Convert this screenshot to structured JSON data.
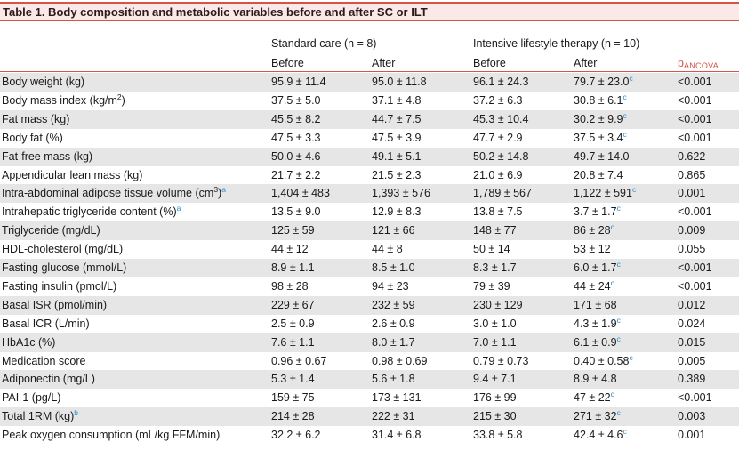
{
  "header": {
    "title": "Table 1. Body composition and metabolic variables before and after SC or ILT"
  },
  "table": {
    "groups": [
      "Standard care (n = 8)",
      "Intensive lifestyle therapy (n = 10)"
    ],
    "subheads": [
      "Before",
      "After",
      "Before",
      "After"
    ],
    "p_header": {
      "text": "p",
      "sub": "ANCOVA"
    },
    "rows": [
      {
        "label": {
          "text": "Body weight (kg)"
        },
        "cells": [
          "95.9 ± 11.4",
          "95.0 ± 11.8",
          "96.1 ± 24.3",
          {
            "text": "79.7 ± 23.0",
            "note": "c"
          },
          "<0.001"
        ]
      },
      {
        "label": {
          "text": "Body mass index (kg/m",
          "sup": "2",
          "tail": ")"
        },
        "cells": [
          "37.5 ± 5.0",
          "37.1 ± 4.8",
          "37.2 ± 6.3",
          {
            "text": "30.8 ± 6.1",
            "note": "c"
          },
          "<0.001"
        ]
      },
      {
        "label": {
          "text": "Fat mass (kg)"
        },
        "cells": [
          "45.5 ± 8.2",
          "44.7 ± 7.5",
          "45.3 ± 10.4",
          {
            "text": "30.2 ± 9.9",
            "note": "c"
          },
          "<0.001"
        ]
      },
      {
        "label": {
          "text": "Body fat (%)"
        },
        "cells": [
          "47.5 ± 3.3",
          "47.5 ± 3.9",
          "47.7 ± 2.9",
          {
            "text": "37.5 ± 3.4",
            "note": "c"
          },
          "<0.001"
        ]
      },
      {
        "label": {
          "text": "Fat-free mass (kg)"
        },
        "cells": [
          "50.0 ± 4.6",
          "49.1 ± 5.1",
          "50.2 ± 14.8",
          "49.7 ± 14.0",
          "0.622"
        ]
      },
      {
        "label": {
          "text": "Appendicular lean mass (kg)"
        },
        "cells": [
          "21.7 ± 2.2",
          "21.5 ± 2.3",
          "21.0 ± 6.9",
          "20.8 ± 7.4",
          "0.865"
        ]
      },
      {
        "label": {
          "text": "Intra-abdominal adipose tissue volume (cm",
          "sup": "3",
          "tail": ")",
          "note": "a"
        },
        "cells": [
          "1,404 ± 483",
          "1,393 ± 576",
          "1,789 ± 567",
          {
            "text": "1,122 ± 591",
            "note": "c"
          },
          "0.001"
        ]
      },
      {
        "label": {
          "text": "Intrahepatic triglyceride content (%)",
          "note": "a"
        },
        "cells": [
          "13.5 ± 9.0",
          "12.9 ± 8.3",
          "13.8 ± 7.5",
          {
            "text": "3.7 ± 1.7",
            "note": "c"
          },
          "<0.001"
        ]
      },
      {
        "label": {
          "text": "Triglyceride (mg/dL)"
        },
        "cells": [
          "125 ± 59",
          "121 ± 66",
          "148 ± 77",
          {
            "text": "86 ± 28",
            "note": "c"
          },
          "0.009"
        ]
      },
      {
        "label": {
          "text": "HDL-cholesterol (mg/dL)"
        },
        "cells": [
          "44 ± 12",
          "44 ± 8",
          "50 ± 14",
          "53 ± 12",
          "0.055"
        ]
      },
      {
        "label": {
          "text": "Fasting glucose (mmol/L)"
        },
        "cells": [
          "8.9 ± 1.1",
          "8.5 ± 1.0",
          "8.3 ± 1.7",
          {
            "text": "6.0 ± 1.7",
            "note": "c"
          },
          "<0.001"
        ]
      },
      {
        "label": {
          "text": "Fasting insulin (pmol/L)"
        },
        "cells": [
          "98 ± 28",
          "94 ± 23",
          "79 ± 39",
          {
            "text": "44 ± 24",
            "note": "c"
          },
          "<0.001"
        ]
      },
      {
        "label": {
          "text": "Basal ISR (pmol/min)"
        },
        "cells": [
          "229 ± 67",
          "232 ± 59",
          "230 ± 129",
          "171 ± 68",
          "0.012"
        ]
      },
      {
        "label": {
          "text": "Basal ICR (L/min)"
        },
        "cells": [
          "2.5 ± 0.9",
          "2.6 ± 0.9",
          "3.0 ± 1.0",
          {
            "text": "4.3 ± 1.9",
            "note": "c"
          },
          "0.024"
        ]
      },
      {
        "label": {
          "text": "HbA1c (%)"
        },
        "cells": [
          "7.6 ± 1.1",
          "8.0 ± 1.7",
          "7.0 ± 1.1",
          {
            "text": "6.1 ± 0.9",
            "note": "c"
          },
          "0.015"
        ]
      },
      {
        "label": {
          "text": "Medication score"
        },
        "cells": [
          "0.96 ± 0.67",
          "0.98 ± 0.69",
          "0.79 ± 0.73",
          {
            "text": "0.40 ± 0.58",
            "note": "c"
          },
          "0.005"
        ]
      },
      {
        "label": {
          "text": "Adiponectin (mg/L)"
        },
        "cells": [
          "5.3 ± 1.4",
          "5.6 ± 1.8",
          "9.4 ± 7.1",
          "8.9 ± 4.8",
          "0.389"
        ]
      },
      {
        "label": {
          "text": "PAI-1 (pg/L)"
        },
        "cells": [
          "159 ± 75",
          "173 ± 131",
          "176 ± 99",
          {
            "text": "47 ± 22",
            "note": "c"
          },
          "<0.001"
        ]
      },
      {
        "label": {
          "text": "Total 1RM (kg)",
          "note": "b"
        },
        "cells": [
          "214 ± 28",
          "222 ± 31",
          "215 ± 30",
          {
            "text": "271 ± 32",
            "note": "c"
          },
          "0.003"
        ]
      },
      {
        "label": {
          "text": "Peak oxygen consumption (mL/kg FFM/min)"
        },
        "cells": [
          "32.2 ± 6.2",
          "31.4 ± 6.8",
          "33.8 ± 5.8",
          {
            "text": "42.4 ± 4.6",
            "note": "c"
          },
          "0.001"
        ]
      }
    ]
  }
}
